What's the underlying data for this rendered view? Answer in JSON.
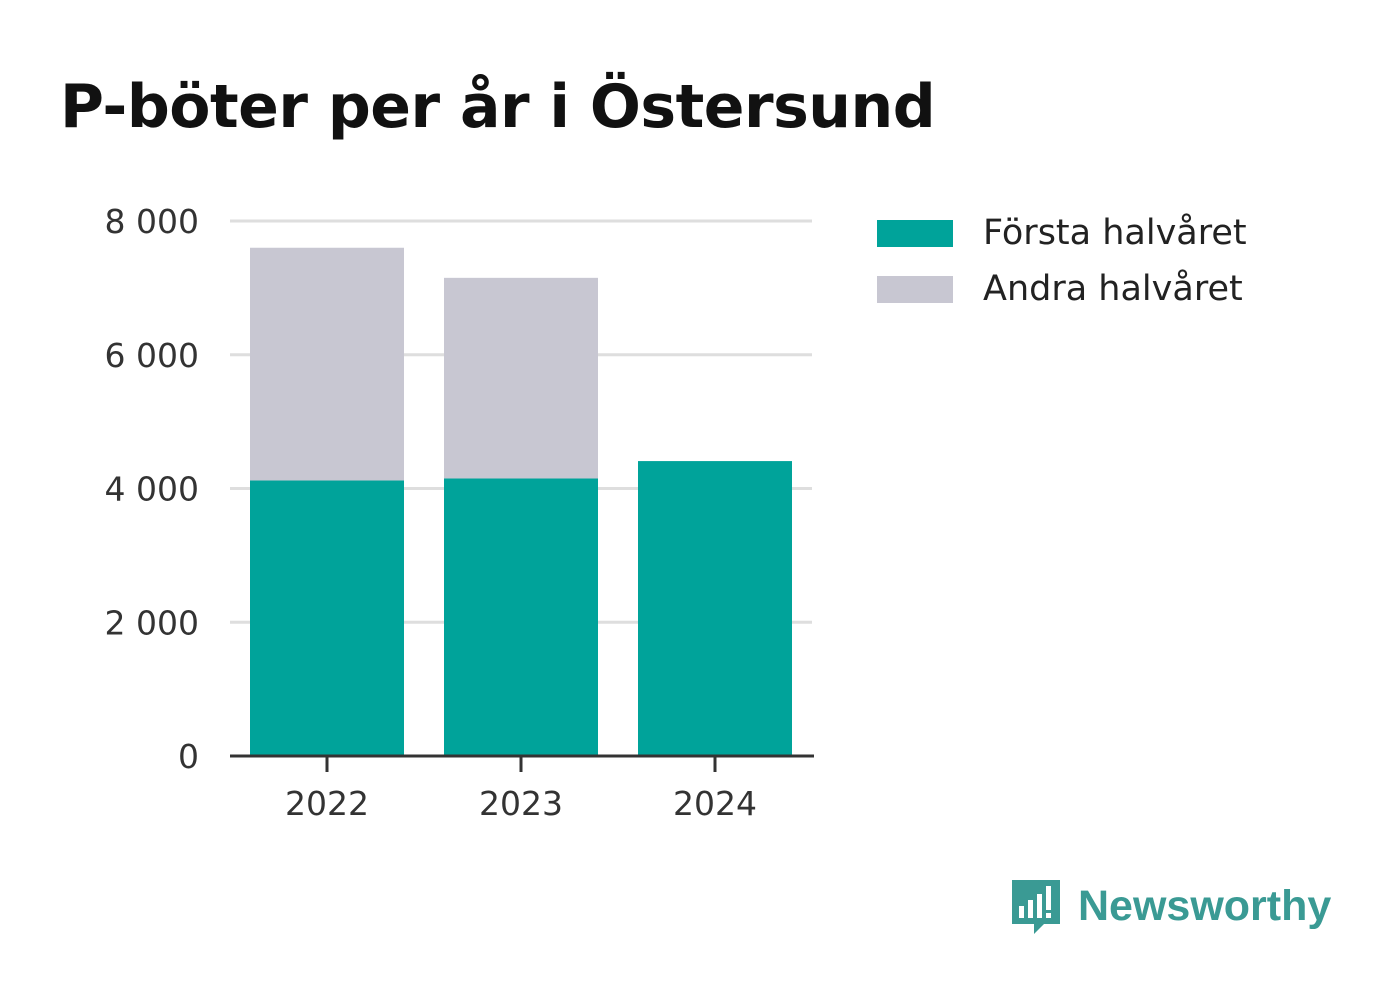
{
  "title": "P-böter per år i Östersund",
  "chart_data": {
    "type": "bar",
    "stacked": true,
    "title": "P-böter per år i Östersund",
    "categories": [
      "2022",
      "2023",
      "2024"
    ],
    "series": [
      {
        "name": "Första halvåret",
        "color": "#00a39a",
        "values": [
          4120,
          4150,
          4410
        ]
      },
      {
        "name": "Andra halvåret",
        "color": "#c8c7d2",
        "values": [
          3480,
          3000,
          0
        ]
      }
    ],
    "yticks": [
      0,
      2000,
      4000,
      6000,
      8000
    ],
    "ytick_labels": [
      "0",
      "2 000",
      "4 000",
      "6 000",
      "8 000"
    ],
    "ylim": [
      0,
      8000
    ],
    "grid": true,
    "legend_position": "right",
    "xlabel": "",
    "ylabel": ""
  },
  "legend": {
    "items": [
      {
        "label": "Första halvåret",
        "color": "#00a39a"
      },
      {
        "label": "Andra halvåret",
        "color": "#c8c7d2"
      }
    ]
  },
  "logo": {
    "text": "Newsworthy",
    "icon": "newsworthy-logo-icon",
    "color": "#3a9a94"
  }
}
